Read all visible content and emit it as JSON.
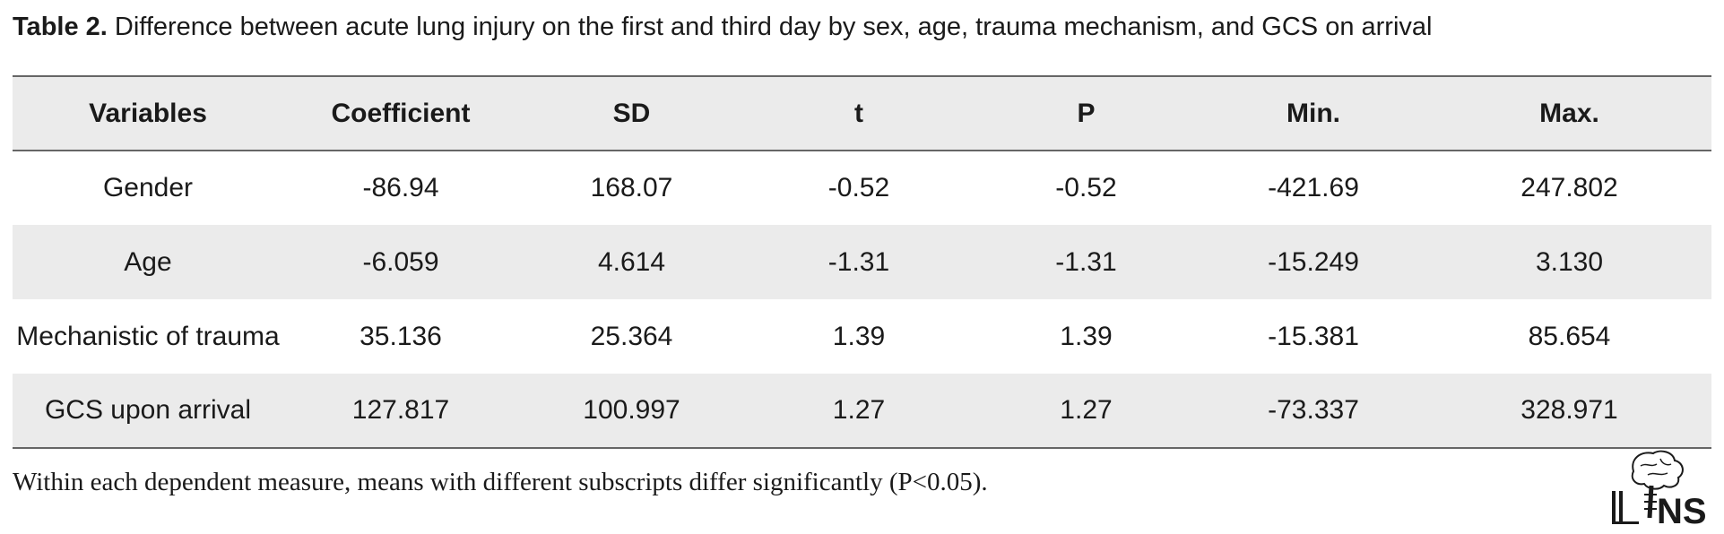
{
  "caption": {
    "label": "Table 2.",
    "text": "Difference between acute lung injury on the first and third day by sex, age, trauma mechanism, and GCS on arrival"
  },
  "table": {
    "headers": [
      "Variables",
      "Coefficient",
      "SD",
      "t",
      "P",
      "Min.",
      "Max."
    ],
    "rows": [
      [
        "Gender",
        "-86.94",
        "168.07",
        "-0.52",
        "-0.52",
        "-421.69",
        "247.802"
      ],
      [
        "Age",
        "-6.059",
        "4.614",
        "-1.31",
        "-1.31",
        "-15.249",
        "3.130"
      ],
      [
        "Mechanistic of trauma",
        "35.136",
        "25.364",
        "1.39",
        "1.39",
        "-15.381",
        "85.654"
      ],
      [
        "GCS upon arrival",
        "127.817",
        "100.997",
        "1.27",
        "1.27",
        "-73.337",
        "328.971"
      ]
    ]
  },
  "footnote": "Within each dependent measure, means with different subscripts differ significantly (P<0.05).",
  "logo": {
    "icon": "journal-logo-icon",
    "text": "NS"
  }
}
